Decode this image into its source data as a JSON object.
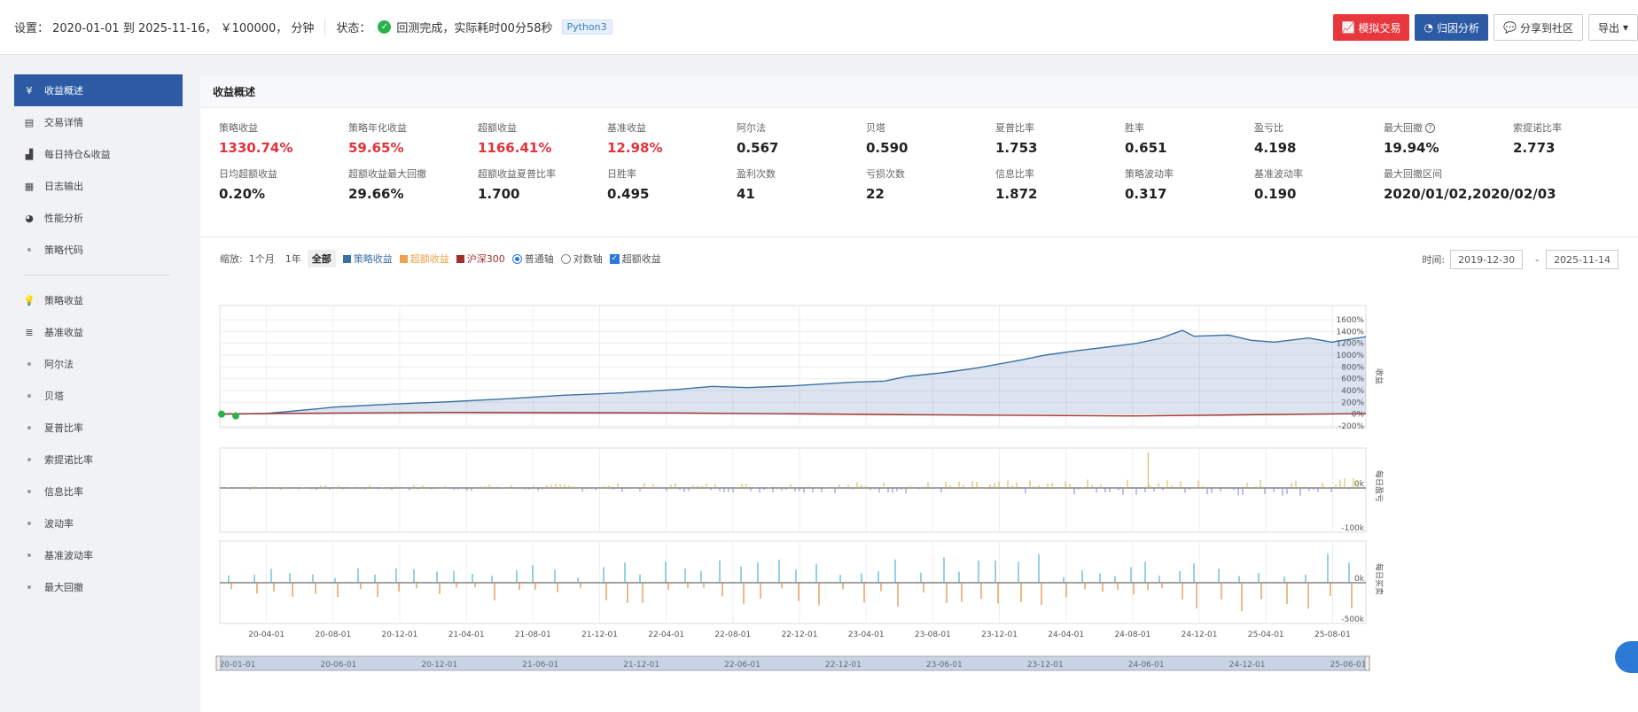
{
  "topbar": {
    "settings": "设置： 2020-01-01 到 2025-11-16， ￥100000， 分钟",
    "status_label": "状态：",
    "status_text": "回测完成，实际耗时00分58秒",
    "lang_tag": "Python3",
    "buttons": {
      "sim_trade": "模拟交易",
      "attribution": "归因分析",
      "share": "分享到社区",
      "export": "导出"
    }
  },
  "sidebar": {
    "items": [
      {
        "label": "收益概述",
        "icon": "yen-icon",
        "active": true
      },
      {
        "label": "交易详情",
        "icon": "document-icon"
      },
      {
        "label": "每日持仓&收益",
        "icon": "bar-chart-icon"
      },
      {
        "label": "日志输出",
        "icon": "calendar-icon"
      },
      {
        "label": "性能分析",
        "icon": "pie-chart-icon"
      },
      {
        "label": "策略代码",
        "icon": "dot"
      }
    ],
    "items2": [
      {
        "label": "策略收益",
        "icon": "bulb-icon"
      },
      {
        "label": "基准收益",
        "icon": "database-icon"
      },
      {
        "label": "阿尔法",
        "icon": "dot"
      },
      {
        "label": "贝塔",
        "icon": "dot"
      },
      {
        "label": "夏普比率",
        "icon": "dot"
      },
      {
        "label": "索提诺比率",
        "icon": "dot"
      },
      {
        "label": "信息比率",
        "icon": "dot"
      },
      {
        "label": "波动率",
        "icon": "dot"
      },
      {
        "label": "基准波动率",
        "icon": "dot"
      },
      {
        "label": "最大回撤",
        "icon": "dot"
      }
    ]
  },
  "panel": {
    "title": "收益概述",
    "metrics": [
      {
        "label": "策略收益",
        "value": "1330.74%",
        "red": true
      },
      {
        "label": "策略年化收益",
        "value": "59.65%",
        "red": true
      },
      {
        "label": "超额收益",
        "value": "1166.41%",
        "red": true
      },
      {
        "label": "基准收益",
        "value": "12.98%",
        "red": true
      },
      {
        "label": "阿尔法",
        "value": "0.567"
      },
      {
        "label": "贝塔",
        "value": "0.590"
      },
      {
        "label": "夏普比率",
        "value": "1.753"
      },
      {
        "label": "胜率",
        "value": "0.651"
      },
      {
        "label": "盈亏比",
        "value": "4.198"
      },
      {
        "label": "最大回撤",
        "value": "19.94%",
        "help": true
      },
      {
        "label": "索提诺比率",
        "value": "2.773"
      },
      {
        "label": "日均超额收益",
        "value": "0.20%"
      },
      {
        "label": "超额收益最大回撤",
        "value": "29.66%"
      },
      {
        "label": "超额收益夏普比率",
        "value": "1.700"
      },
      {
        "label": "日胜率",
        "value": "0.495"
      },
      {
        "label": "盈利次数",
        "value": "41"
      },
      {
        "label": "亏损次数",
        "value": "22"
      },
      {
        "label": "信息比率",
        "value": "1.872"
      },
      {
        "label": "策略波动率",
        "value": "0.317"
      },
      {
        "label": "基准波动率",
        "value": "0.190"
      },
      {
        "label": "最大回撤区间",
        "value": "2020/01/02,2020/02/03"
      }
    ]
  },
  "controls": {
    "zoom_label": "缩放:",
    "zoom_options": [
      "1个月",
      "1年",
      "全部"
    ],
    "legend": [
      {
        "name": "策略收益",
        "color": "#3c6fa5"
      },
      {
        "name": "超额收益",
        "color": "#f0a04b"
      },
      {
        "name": "沪深300",
        "color": "#a03030"
      }
    ],
    "axis_normal": "普通轴",
    "axis_log": "对数轴",
    "excess_check": "超额收益",
    "time_label": "时间:",
    "date_from": "2019-12-30",
    "date_to": "2025-11-14",
    "date_sep": "-"
  },
  "chart_data": {
    "type": "line",
    "x_ticks": [
      "20-04-01",
      "20-08-01",
      "20-12-01",
      "21-04-01",
      "21-08-01",
      "21-12-01",
      "22-04-01",
      "22-08-01",
      "22-12-01",
      "23-04-01",
      "23-08-01",
      "23-12-01",
      "24-04-01",
      "24-08-01",
      "24-12-01",
      "25-04-01",
      "25-08-01"
    ],
    "navigator_ticks": [
      "20-01-01",
      "20-06-01",
      "20-12-01",
      "21-06-01",
      "21-12-01",
      "22-06-01",
      "22-12-01",
      "23-06-01",
      "23-12-01",
      "24-06-01",
      "24-12-01",
      "25-06-01"
    ],
    "y1_ticks": [
      "1600%",
      "1400%",
      "1200%",
      "1000%",
      "800%",
      "600%",
      "400%",
      "200%",
      "0%",
      "-200%"
    ],
    "y1_label": "收益",
    "y2_ticks": [
      "0k",
      "-100k"
    ],
    "y2_label": "每日盈亏",
    "y3_ticks": [
      "0k",
      "-500k"
    ],
    "y3_label": "每日买卖",
    "ylim": [
      -200,
      1600
    ],
    "series": [
      {
        "name": "策略收益",
        "t": [
          0,
          0.04,
          0.085,
          0.1,
          0.15,
          0.2,
          0.25,
          0.3,
          0.35,
          0.4,
          0.43,
          0.46,
          0.5,
          0.55,
          0.58,
          0.6,
          0.63,
          0.66,
          0.7,
          0.72,
          0.75,
          0.78,
          0.8,
          0.82,
          0.84,
          0.85,
          0.88,
          0.9,
          0.92,
          0.95,
          0.97,
          1.0
        ],
        "values": [
          0,
          10,
          90,
          120,
          170,
          210,
          260,
          320,
          360,
          420,
          470,
          450,
          480,
          540,
          560,
          640,
          700,
          780,
          920,
          1000,
          1080,
          1150,
          1200,
          1280,
          1420,
          1320,
          1340,
          1250,
          1220,
          1290,
          1220,
          1310
        ]
      },
      {
        "name": "沪深300",
        "t": [
          0,
          0.2,
          0.4,
          0.6,
          0.8,
          1.0
        ],
        "values": [
          5,
          30,
          20,
          -10,
          -30,
          10
        ]
      }
    ]
  }
}
